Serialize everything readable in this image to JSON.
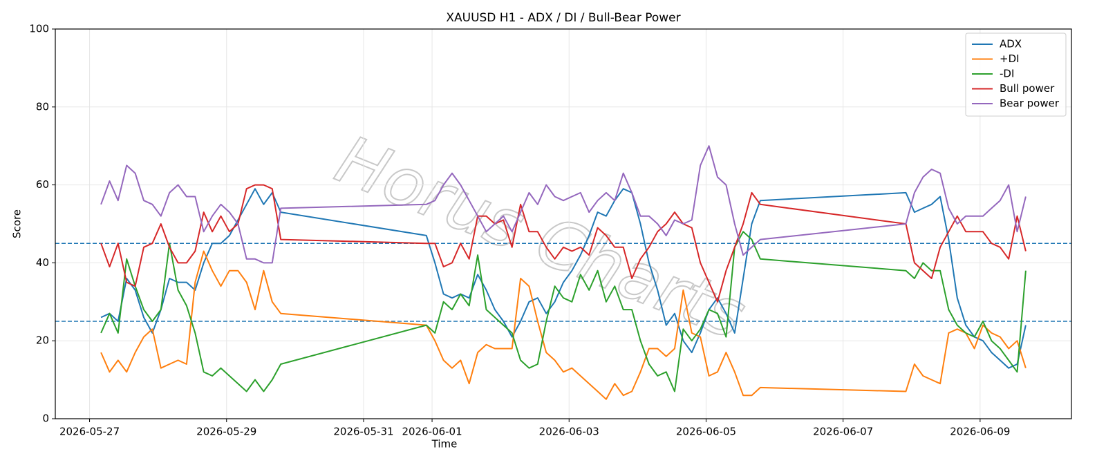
{
  "chart_data": {
    "type": "line",
    "title": "XAUUSD H1 - ADX / DI / Bull-Bear Power",
    "xlabel": "Time",
    "ylabel": "Score",
    "watermark": "Horus Charts",
    "xlim": [
      "2026-05-26 12:00",
      "2026-06-10 08:00"
    ],
    "xticks": [
      "2026-05-27",
      "2026-05-29",
      "2026-05-31",
      "2026-06-01",
      "2026-06-03",
      "2026-06-05",
      "2026-06-07",
      "2026-06-09"
    ],
    "ylim": [
      0,
      100
    ],
    "yticks": [
      0,
      20,
      40,
      60,
      80,
      100
    ],
    "grid": true,
    "legend": "upper right",
    "hlines": [
      25,
      45
    ],
    "hline_color": "#1f77b4",
    "x": [
      "2026-05-27 04:00",
      "2026-05-27 07:00",
      "2026-05-27 10:00",
      "2026-05-27 13:00",
      "2026-05-27 16:00",
      "2026-05-27 19:00",
      "2026-05-27 22:00",
      "2026-05-28 01:00",
      "2026-05-28 04:00",
      "2026-05-28 07:00",
      "2026-05-28 10:00",
      "2026-05-28 13:00",
      "2026-05-28 16:00",
      "2026-05-28 19:00",
      "2026-05-28 22:00",
      "2026-05-29 01:00",
      "2026-05-29 04:00",
      "2026-05-29 07:00",
      "2026-05-29 10:00",
      "2026-05-29 13:00",
      "2026-05-29 16:00",
      "2026-05-29 19:00",
      "2026-05-31 22:00",
      "2026-06-01 01:00",
      "2026-06-01 04:00",
      "2026-06-01 07:00",
      "2026-06-01 10:00",
      "2026-06-01 13:00",
      "2026-06-01 16:00",
      "2026-06-01 19:00",
      "2026-06-01 22:00",
      "2026-06-02 01:00",
      "2026-06-02 04:00",
      "2026-06-02 07:00",
      "2026-06-02 10:00",
      "2026-06-02 13:00",
      "2026-06-02 16:00",
      "2026-06-02 19:00",
      "2026-06-02 22:00",
      "2026-06-03 01:00",
      "2026-06-03 04:00",
      "2026-06-03 07:00",
      "2026-06-03 10:00",
      "2026-06-03 13:00",
      "2026-06-03 16:00",
      "2026-06-03 19:00",
      "2026-06-03 22:00",
      "2026-06-04 01:00",
      "2026-06-04 04:00",
      "2026-06-04 07:00",
      "2026-06-04 10:00",
      "2026-06-04 13:00",
      "2026-06-04 16:00",
      "2026-06-04 19:00",
      "2026-06-04 22:00",
      "2026-06-05 01:00",
      "2026-06-05 04:00",
      "2026-06-05 07:00",
      "2026-06-05 10:00",
      "2026-06-05 13:00",
      "2026-06-05 16:00",
      "2026-06-05 19:00",
      "2026-06-07 22:00",
      "2026-06-08 01:00",
      "2026-06-08 04:00",
      "2026-06-08 07:00",
      "2026-06-08 10:00",
      "2026-06-08 13:00",
      "2026-06-08 16:00",
      "2026-06-08 19:00",
      "2026-06-08 22:00",
      "2026-06-09 01:00",
      "2026-06-09 04:00",
      "2026-06-09 07:00",
      "2026-06-09 10:00",
      "2026-06-09 13:00",
      "2026-06-09 16:00"
    ],
    "series": [
      {
        "name": "ADX",
        "color": "#1f77b4",
        "values": [
          26,
          27,
          25,
          36,
          33,
          26,
          22,
          28,
          36,
          35,
          35,
          33,
          40,
          45,
          45,
          47,
          51,
          55,
          59,
          55,
          58,
          53,
          47,
          40,
          32,
          31,
          32,
          31,
          37,
          33,
          28,
          25,
          21,
          25,
          30,
          31,
          27,
          30,
          35,
          38,
          42,
          47,
          53,
          52,
          56,
          59,
          58,
          50,
          40,
          33,
          24,
          27,
          20,
          17,
          22,
          28,
          31,
          27,
          22,
          36,
          50,
          56,
          58,
          53,
          54,
          55,
          57,
          46,
          31,
          24,
          21,
          20,
          17,
          15,
          13,
          14,
          24
        ]
      },
      {
        "name": "+DI",
        "color": "#ff7f0e",
        "values": [
          17,
          12,
          15,
          12,
          17,
          21,
          23,
          13,
          14,
          15,
          14,
          35,
          43,
          38,
          34,
          38,
          38,
          35,
          28,
          38,
          30,
          27,
          24,
          20,
          15,
          13,
          15,
          9,
          17,
          19,
          18,
          18,
          18,
          36,
          34,
          25,
          17,
          15,
          12,
          13,
          11,
          9,
          7,
          5,
          9,
          6,
          7,
          12,
          18,
          18,
          16,
          18,
          33,
          22,
          21,
          11,
          12,
          17,
          12,
          6,
          6,
          8,
          7,
          14,
          11,
          10,
          9,
          22,
          23,
          22,
          18,
          24,
          22,
          21,
          18,
          20,
          13
        ]
      },
      {
        "name": "-DI",
        "color": "#2ca02c",
        "values": [
          22,
          27,
          22,
          41,
          34,
          28,
          25,
          28,
          45,
          33,
          29,
          22,
          12,
          11,
          13,
          11,
          9,
          7,
          10,
          7,
          10,
          14,
          24,
          22,
          30,
          28,
          32,
          29,
          42,
          28,
          26,
          24,
          22,
          15,
          13,
          14,
          25,
          34,
          31,
          30,
          37,
          33,
          38,
          30,
          34,
          28,
          28,
          20,
          14,
          11,
          12,
          7,
          23,
          20,
          23,
          28,
          27,
          21,
          44,
          48,
          46,
          41,
          38,
          36,
          40,
          38,
          38,
          28,
          24,
          22,
          21,
          25,
          20,
          18,
          15,
          12,
          38
        ]
      },
      {
        "name": "Bull power",
        "color": "#d62728",
        "values": [
          45,
          39,
          45,
          35,
          34,
          44,
          45,
          50,
          44,
          40,
          40,
          43,
          53,
          48,
          52,
          48,
          50,
          59,
          60,
          60,
          59,
          46,
          45,
          45,
          39,
          40,
          45,
          41,
          52,
          52,
          50,
          51,
          44,
          55,
          48,
          48,
          44,
          41,
          44,
          43,
          44,
          42,
          49,
          47,
          44,
          44,
          36,
          41,
          44,
          48,
          50,
          53,
          50,
          49,
          40,
          35,
          30,
          38,
          44,
          50,
          58,
          55,
          50,
          40,
          38,
          36,
          44,
          48,
          52,
          48,
          48,
          48,
          45,
          44,
          41,
          52,
          43
        ]
      },
      {
        "name": "Bear power",
        "color": "#9467bd",
        "values": [
          55,
          61,
          56,
          65,
          63,
          56,
          55,
          52,
          58,
          60,
          57,
          57,
          48,
          52,
          55,
          53,
          50,
          41,
          41,
          40,
          40,
          54,
          55,
          56,
          60,
          63,
          60,
          56,
          52,
          48,
          50,
          52,
          48,
          53,
          58,
          55,
          60,
          57,
          56,
          57,
          58,
          53,
          56,
          58,
          56,
          63,
          58,
          52,
          52,
          50,
          47,
          51,
          50,
          51,
          65,
          70,
          62,
          60,
          50,
          42,
          44,
          46,
          50,
          58,
          62,
          64,
          63,
          54,
          50,
          52,
          52,
          52,
          54,
          56,
          60,
          48,
          57
        ]
      }
    ]
  }
}
